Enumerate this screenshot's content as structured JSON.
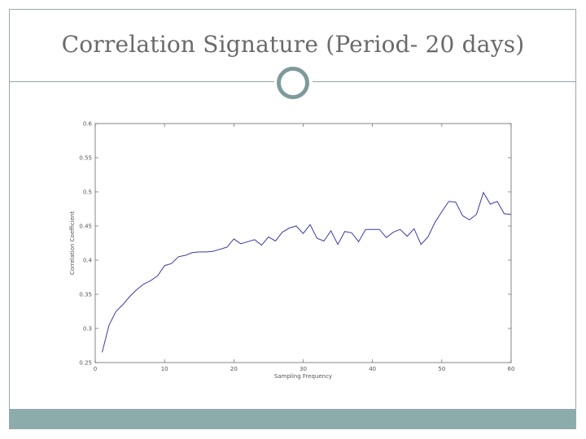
{
  "slide": {
    "title": "Correlation Signature (Period- 20 days)",
    "colors": {
      "accent": "#8cacac",
      "ring": "#7f9a9c",
      "line": "#3a3aa8"
    }
  },
  "chart_data": {
    "type": "line",
    "title": "",
    "xlabel": "Sampling Frequency",
    "ylabel": "Correlation Coefficient",
    "xlim": [
      0,
      60
    ],
    "ylim": [
      0.25,
      0.6
    ],
    "xticks": [
      0,
      10,
      20,
      30,
      40,
      50,
      60
    ],
    "xtick_labels": [
      "0",
      "10",
      "20",
      "30",
      "40",
      "50",
      "60"
    ],
    "yticks": [
      0.25,
      0.3,
      0.35,
      0.4,
      0.45,
      0.5,
      0.55,
      0.6
    ],
    "ytick_labels": [
      "0.25",
      "0.3",
      "0.35",
      "0.4",
      "0.45",
      "0.5",
      "0.55",
      "0.6"
    ],
    "grid": false,
    "series": [
      {
        "x": [
          1,
          2,
          3,
          4,
          5,
          6,
          7,
          8,
          9,
          10,
          11,
          12,
          13,
          14,
          15,
          16,
          17,
          18,
          19,
          20,
          21,
          22,
          23,
          24,
          25,
          26,
          27,
          28,
          29,
          30,
          31,
          32,
          33,
          34,
          35,
          36,
          37,
          38,
          39,
          40,
          41,
          42,
          43,
          44,
          45,
          46,
          47,
          48,
          49,
          50,
          51,
          52,
          53,
          54,
          55,
          56,
          57,
          58,
          59,
          60
        ],
        "values": [
          0.265,
          0.305,
          0.325,
          0.335,
          0.347,
          0.357,
          0.365,
          0.37,
          0.377,
          0.392,
          0.395,
          0.405,
          0.407,
          0.411,
          0.412,
          0.412,
          0.413,
          0.416,
          0.419,
          0.431,
          0.424,
          0.427,
          0.43,
          0.422,
          0.434,
          0.428,
          0.441,
          0.447,
          0.45,
          0.439,
          0.452,
          0.432,
          0.428,
          0.443,
          0.423,
          0.442,
          0.44,
          0.427,
          0.445,
          0.445,
          0.445,
          0.433,
          0.441,
          0.445,
          0.435,
          0.446,
          0.423,
          0.434,
          0.455,
          0.471,
          0.486,
          0.485,
          0.465,
          0.459,
          0.467,
          0.499,
          0.482,
          0.486,
          0.468,
          0.467
        ]
      }
    ]
  }
}
